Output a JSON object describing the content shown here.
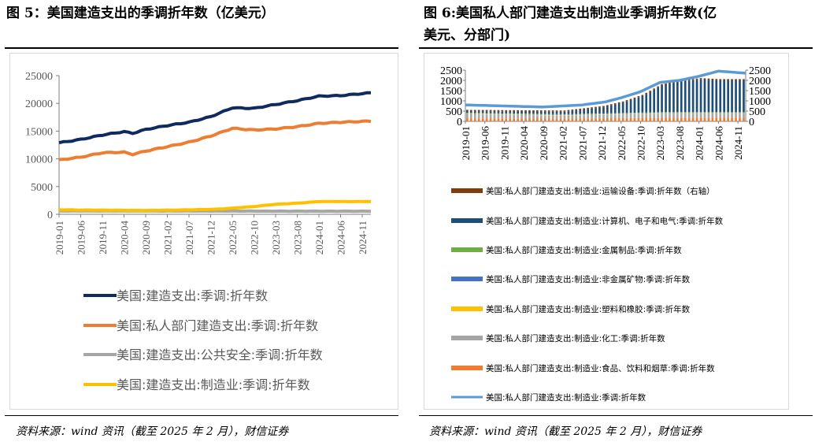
{
  "left": {
    "title": "图 5：美国建造支出的季调折年数（亿美元）",
    "source": "资料来源：wind 资讯（截至 2025 年 2 月），财信证券"
  },
  "right": {
    "title_line1": "图 6:美国私人部门建造支出制造业季调折年数(亿",
    "title_line2": "美元、分部门)",
    "source": "资料来源：wind 资讯（截至 2025 年 2 月），财信证券"
  },
  "chart_data": [
    {
      "type": "line",
      "title": "",
      "x_ticks": [
        "2019-01",
        "2019-06",
        "2019-11",
        "2020-04",
        "2020-09",
        "2021-02",
        "2021-07",
        "2021-12",
        "2022-05",
        "2022-10",
        "2023-03",
        "2023-08",
        "2024-01",
        "2024-06",
        "2024-11"
      ],
      "x_range": [
        "2019-01",
        "2025-01"
      ],
      "ylim": [
        0,
        25000
      ],
      "y_ticks": [
        "0",
        "5000",
        "10000",
        "15000",
        "20000",
        "25000"
      ],
      "grid": false,
      "legend_position": "bottom",
      "series": [
        {
          "name": "美国:建造支出:季调:折年数",
          "color": "#0f2a5e",
          "points": [
            [
              "2019-01",
              12900
            ],
            [
              "2019-06",
              13500
            ],
            [
              "2019-11",
              14300
            ],
            [
              "2020-04",
              14900
            ],
            [
              "2020-06",
              14600
            ],
            [
              "2020-09",
              15300
            ],
            [
              "2021-02",
              16000
            ],
            [
              "2021-07",
              16600
            ],
            [
              "2021-12",
              17600
            ],
            [
              "2022-05",
              19200
            ],
            [
              "2022-10",
              19100
            ],
            [
              "2023-03",
              19800
            ],
            [
              "2023-08",
              20500
            ],
            [
              "2024-01",
              21300
            ],
            [
              "2024-06",
              21400
            ],
            [
              "2025-01",
              21900
            ]
          ]
        },
        {
          "name": "美国:私人部门建造支出:季调:折年数",
          "color": "#ed7d31",
          "points": [
            [
              "2019-01",
              9800
            ],
            [
              "2019-06",
              10300
            ],
            [
              "2019-11",
              11100
            ],
            [
              "2020-04",
              11200
            ],
            [
              "2020-06",
              10800
            ],
            [
              "2020-09",
              11400
            ],
            [
              "2021-02",
              12200
            ],
            [
              "2021-07",
              13000
            ],
            [
              "2021-12",
              14100
            ],
            [
              "2022-05",
              15500
            ],
            [
              "2022-10",
              15200
            ],
            [
              "2023-03",
              15400
            ],
            [
              "2023-08",
              15800
            ],
            [
              "2024-01",
              16400
            ],
            [
              "2024-06",
              16600
            ],
            [
              "2025-01",
              16800
            ]
          ]
        },
        {
          "name": "美国:建造支出:公共安全:季调:折年数",
          "color": "#a6a6a6",
          "points": [
            [
              "2019-01",
              600
            ],
            [
              "2020-06",
              600
            ],
            [
              "2022-01",
              580
            ],
            [
              "2023-06",
              560
            ],
            [
              "2025-01",
              560
            ]
          ]
        },
        {
          "name": "美国:建造支出:制造业:季调:折年数",
          "color": "#ffc000",
          "points": [
            [
              "2019-01",
              800
            ],
            [
              "2020-09",
              700
            ],
            [
              "2021-07",
              800
            ],
            [
              "2022-01",
              900
            ],
            [
              "2022-05",
              1100
            ],
            [
              "2022-10",
              1400
            ],
            [
              "2023-03",
              1800
            ],
            [
              "2023-08",
              2000
            ],
            [
              "2024-01",
              2300
            ],
            [
              "2024-06",
              2300
            ],
            [
              "2025-01",
              2300
            ]
          ]
        }
      ]
    },
    {
      "type": "bar",
      "title": "",
      "x_ticks": [
        "2019-01",
        "2019-06",
        "2019-11",
        "2020-04",
        "2020-09",
        "2021-02",
        "2021-07",
        "2021-12",
        "2022-05",
        "2022-10",
        "2023-03",
        "2023-08",
        "2024-01",
        "2024-06",
        "2024-11"
      ],
      "x_range": [
        "2019-01",
        "2025-01"
      ],
      "ylim": [
        0,
        2500
      ],
      "y_ticks": [
        "0",
        "500",
        "1000",
        "1500",
        "2000",
        "2500"
      ],
      "y2lim": [
        0,
        2500
      ],
      "y2_ticks": [
        "0",
        "500",
        "1000",
        "1500",
        "2000",
        "2500"
      ],
      "grid": false,
      "legend_position": "bottom",
      "stacked": true,
      "series": [
        {
          "name": "美国:私人部门建造支出:制造业:运输设备:季调:折年数（右轴）",
          "color": "#843c0c",
          "axis": "right",
          "points": [
            [
              "2019-01",
              60
            ],
            [
              "2025-01",
              60
            ]
          ]
        },
        {
          "name": "美国:私人部门建造支出:制造业:计算机、电子和电气:季调:折年数",
          "color": "#1f4e79",
          "points": [
            [
              "2019-01",
              80
            ],
            [
              "2021-02",
              120
            ],
            [
              "2021-12",
              300
            ],
            [
              "2022-05",
              500
            ],
            [
              "2022-10",
              800
            ],
            [
              "2023-03",
              1300
            ],
            [
              "2023-08",
              1500
            ],
            [
              "2024-01",
              1600
            ],
            [
              "2024-06",
              1550
            ],
            [
              "2025-01",
              1550
            ]
          ]
        },
        {
          "name": "美国:私人部门建造支出:制造业:金属制品:季调:折年数",
          "color": "#70ad47",
          "points": [
            [
              "2019-01",
              30
            ],
            [
              "2025-01",
              30
            ]
          ]
        },
        {
          "name": "美国:私人部门建造支出:制造业:非金属矿物:季调:折年数",
          "color": "#4472c4",
          "points": [
            [
              "2019-01",
              20
            ],
            [
              "2025-01",
              20
            ]
          ]
        },
        {
          "name": "美国:私人部门建造支出:制造业:塑料和橡胶:季调:折年数",
          "color": "#ffc000",
          "points": [
            [
              "2019-01",
              20
            ],
            [
              "2025-01",
              20
            ]
          ]
        },
        {
          "name": "美国:私人部门建造支出:制造业:化工:季调:折年数",
          "color": "#a5a5a5",
          "points": [
            [
              "2019-01",
              200
            ],
            [
              "2021-02",
              150
            ],
            [
              "2023-03",
              200
            ],
            [
              "2025-01",
              200
            ]
          ]
        },
        {
          "name": "美国:私人部门建造支出:制造业:食品、饮料和烟草:季调:折年数",
          "color": "#ed7d31",
          "points": [
            [
              "2019-01",
              150
            ],
            [
              "2021-02",
              130
            ],
            [
              "2023-03",
              180
            ],
            [
              "2025-01",
              180
            ]
          ]
        },
        {
          "name": "美国:私人部门建造支出:制造业:季调:折年数",
          "color": "#5b9bd5",
          "render": "line",
          "points": [
            [
              "2019-01",
              800
            ],
            [
              "2020-09",
              700
            ],
            [
              "2021-07",
              800
            ],
            [
              "2022-01",
              950
            ],
            [
              "2022-05",
              1150
            ],
            [
              "2022-10",
              1450
            ],
            [
              "2023-03",
              1900
            ],
            [
              "2023-08",
              2000
            ],
            [
              "2024-01",
              2200
            ],
            [
              "2024-06",
              2450
            ],
            [
              "2025-01",
              2350
            ]
          ]
        }
      ]
    }
  ]
}
